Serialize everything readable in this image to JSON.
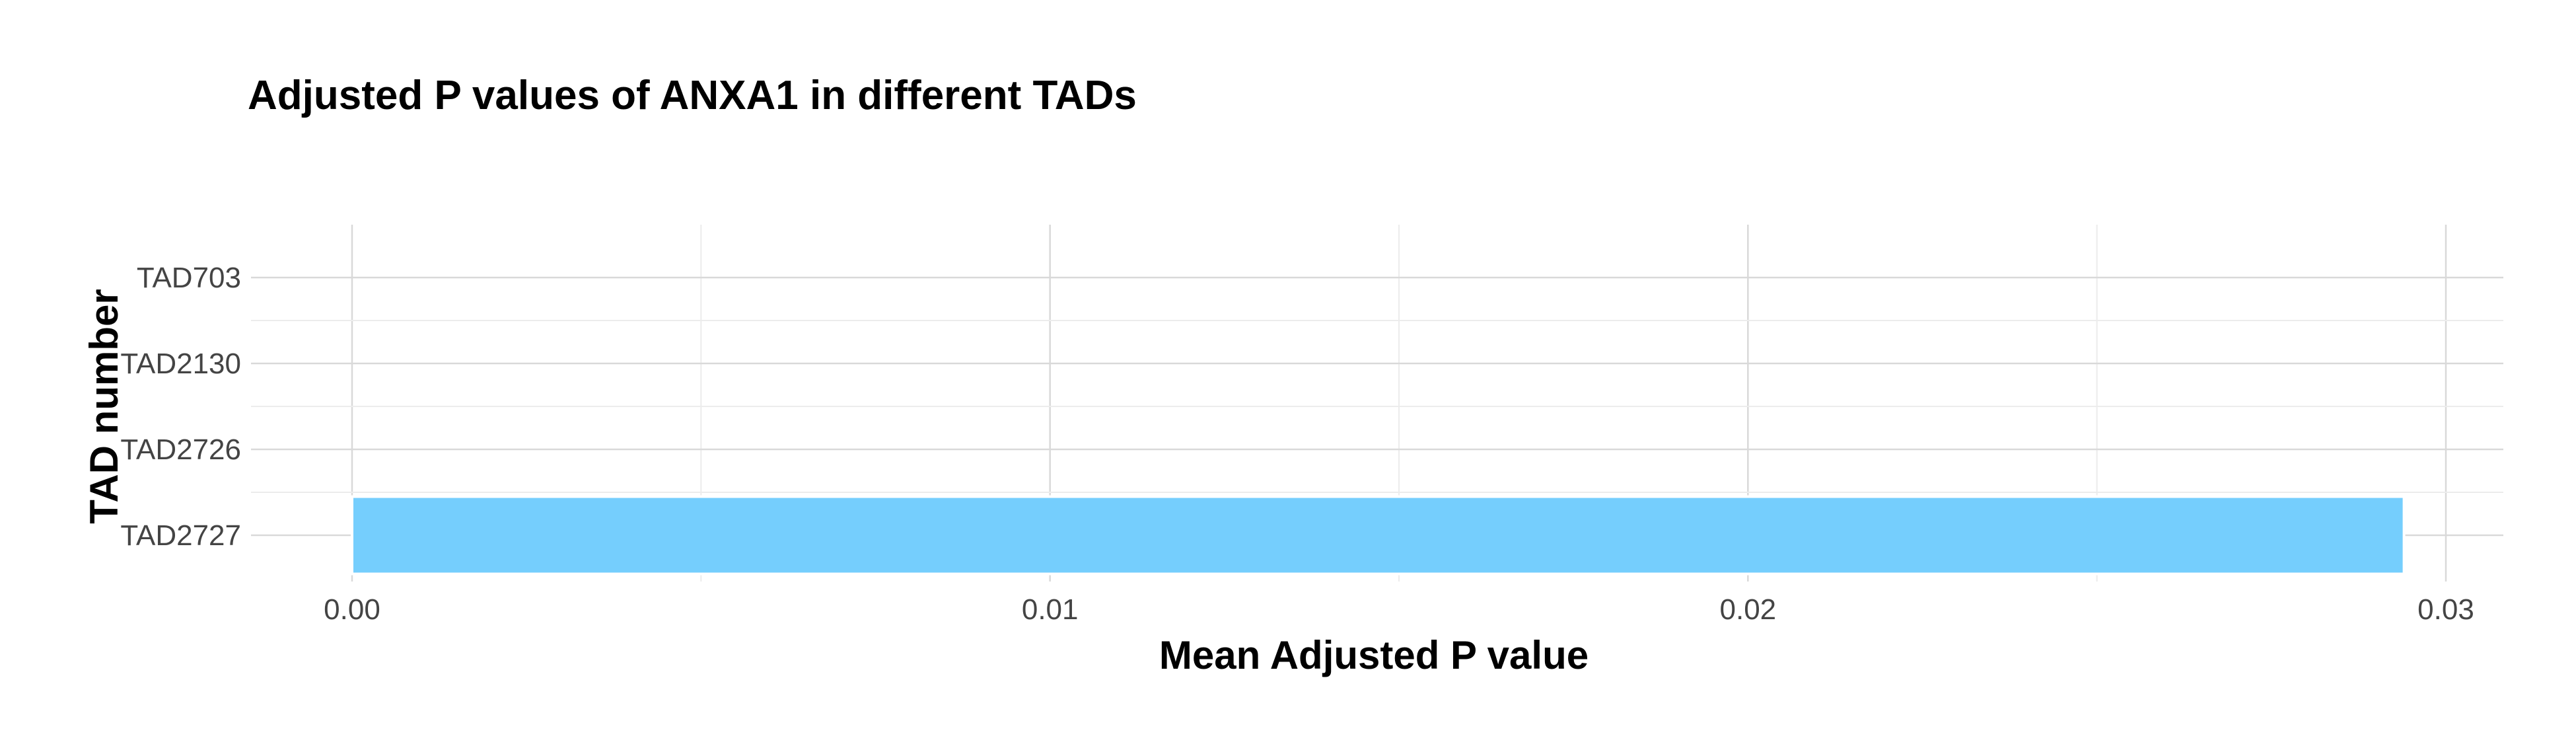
{
  "chart_data": {
    "type": "bar",
    "orientation": "horizontal",
    "title": "Adjusted P values of ANXA1 in different TADs",
    "xlabel": "Mean Adjusted P value",
    "ylabel": "TAD number",
    "categories": [
      "TAD703",
      "TAD2130",
      "TAD2726",
      "TAD2727"
    ],
    "values": [
      0.0,
      0.0,
      0.0,
      0.0294
    ],
    "xlim": [
      0.0,
      0.03
    ],
    "xticks": [
      "0.00",
      "0.01",
      "0.02",
      "0.03"
    ],
    "xtick_values": [
      0.0,
      0.01,
      0.02,
      0.03
    ],
    "bar_color": "#75CEFD",
    "bar_outline_color": "#FFFFFF",
    "grid": true,
    "legend": "none"
  }
}
